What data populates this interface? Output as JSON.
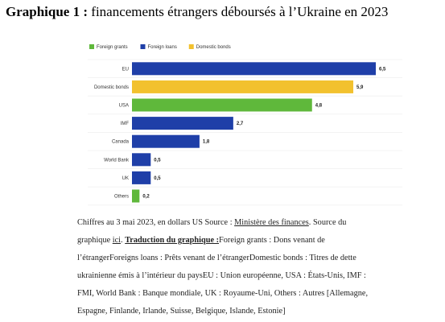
{
  "heading": {
    "label": "Graphique 1 :",
    "text": "financements étrangers déboursés à l’Ukraine en 2023"
  },
  "chart_data": {
    "type": "bar",
    "orientation": "horizontal",
    "categories": [
      "EU",
      "Domestic bonds",
      "USA",
      "IMF",
      "Canada",
      "World Bank",
      "UK",
      "Others"
    ],
    "values": [
      6.5,
      5.9,
      4.8,
      2.7,
      1.8,
      0.5,
      0.5,
      0.2
    ],
    "value_labels": [
      "6,5",
      "5,9",
      "4,8",
      "2,7",
      "1,8",
      "0,5",
      "0,5",
      "0,2"
    ],
    "series_of_bar": [
      "Foreign loans",
      "Domestic bonds",
      "Foreign grants",
      "Foreign loans",
      "Foreign loans",
      "Foreign loans",
      "Foreign loans",
      "Foreign grants"
    ],
    "legend": [
      {
        "name": "Foreign grants",
        "color": "#5fb83b"
      },
      {
        "name": "Foreign loans",
        "color": "#1f3fa8"
      },
      {
        "name": "Domestic bonds",
        "color": "#f2c12e"
      }
    ],
    "legend_placement": "top-left",
    "xlim": [
      0,
      6.5
    ],
    "grid": "horizontal row separators",
    "title": "",
    "xlabel": "",
    "ylabel": ""
  },
  "caption": {
    "l1a": "Chiffres au 3 mai 2023, en dollars US Source : ",
    "l1link": "Ministère des finances",
    "l1b": ". Source du",
    "l2a": "graphique ",
    "l2link": "ici",
    "l2b": ". ",
    "l2bold": "Traduction du graphique :",
    "l2c": "Foreign grants : Dons venant de",
    "l3": "l’étrangerForeigns loans : Prêts venant de l’étrangerDomestic bonds : Titres de dette",
    "l4": "ukrainienne émis à l’intérieur du paysEU : Union européenne, USA : États-Unis, IMF :",
    "l5": "FMI, World Bank : Banque mondiale, UK : Royaume-Uni, Others : Autres [Allemagne,",
    "l6": "Espagne, Finlande, Irlande, Suisse, Belgique, Islande, Estonie]"
  }
}
